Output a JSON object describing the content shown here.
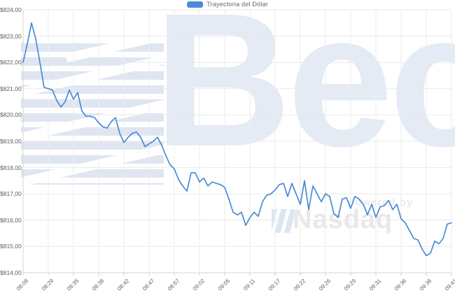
{
  "legend": {
    "label": "Trayectoria del Dólar",
    "swatch_color": "#4a8bd5"
  },
  "watermark": {
    "brand": "Bec",
    "powered_by": "powered by",
    "provider": "Nasdaq"
  },
  "chart_data": {
    "type": "line",
    "title": "",
    "xlabel": "",
    "ylabel": "",
    "ylim": [
      814,
      824
    ],
    "grid": true,
    "legend_position": "top-center",
    "y_ticks": [
      824,
      823,
      822,
      821,
      820,
      819,
      818,
      817,
      816,
      815,
      814
    ],
    "y_tick_labels": [
      "$824,00",
      "$823,00",
      "$822,00",
      "$821,00",
      "$820,00",
      "$819,00",
      "$818,00",
      "$817,00",
      "$816,00",
      "$815,00",
      "$814,00"
    ],
    "x_tick_labels": [
      "08:08",
      "08:29",
      "08:35",
      "08:38",
      "08:42",
      "08:47",
      "08:57",
      "09:02",
      "09:05",
      "09:11",
      "09:17",
      "09:22",
      "09:26",
      "09:29",
      "09:31",
      "09:36",
      "09:38",
      "09:41"
    ],
    "points_per_tick": 6,
    "series": [
      {
        "name": "Trayectoria del Dólar",
        "color": "#4a8bd5",
        "values": [
          822.0,
          822.7,
          823.5,
          822.9,
          822.0,
          821.05,
          821.0,
          820.95,
          820.55,
          820.3,
          820.5,
          820.95,
          820.6,
          820.85,
          820.15,
          819.95,
          819.95,
          819.9,
          819.7,
          819.55,
          819.5,
          819.75,
          819.9,
          819.3,
          818.95,
          819.15,
          819.3,
          819.35,
          819.15,
          818.8,
          818.9,
          819.0,
          819.15,
          818.85,
          818.45,
          818.1,
          817.95,
          817.55,
          817.3,
          817.1,
          817.8,
          817.8,
          817.45,
          817.6,
          817.3,
          817.45,
          817.4,
          817.35,
          817.25,
          816.8,
          816.3,
          816.2,
          816.3,
          815.8,
          816.1,
          816.3,
          816.15,
          816.7,
          816.95,
          817.0,
          817.15,
          817.35,
          817.4,
          816.9,
          817.4,
          817.0,
          816.6,
          817.5,
          816.4,
          817.3,
          817.0,
          816.7,
          817.0,
          816.9,
          816.25,
          816.1,
          816.8,
          816.85,
          816.45,
          816.9,
          816.8,
          816.6,
          816.2,
          816.6,
          816.1,
          816.5,
          816.55,
          816.75,
          816.4,
          816.6,
          816.05,
          815.9,
          815.6,
          815.3,
          815.25,
          814.9,
          814.65,
          814.75,
          815.2,
          815.1,
          815.3,
          815.85,
          815.9
        ]
      }
    ]
  }
}
